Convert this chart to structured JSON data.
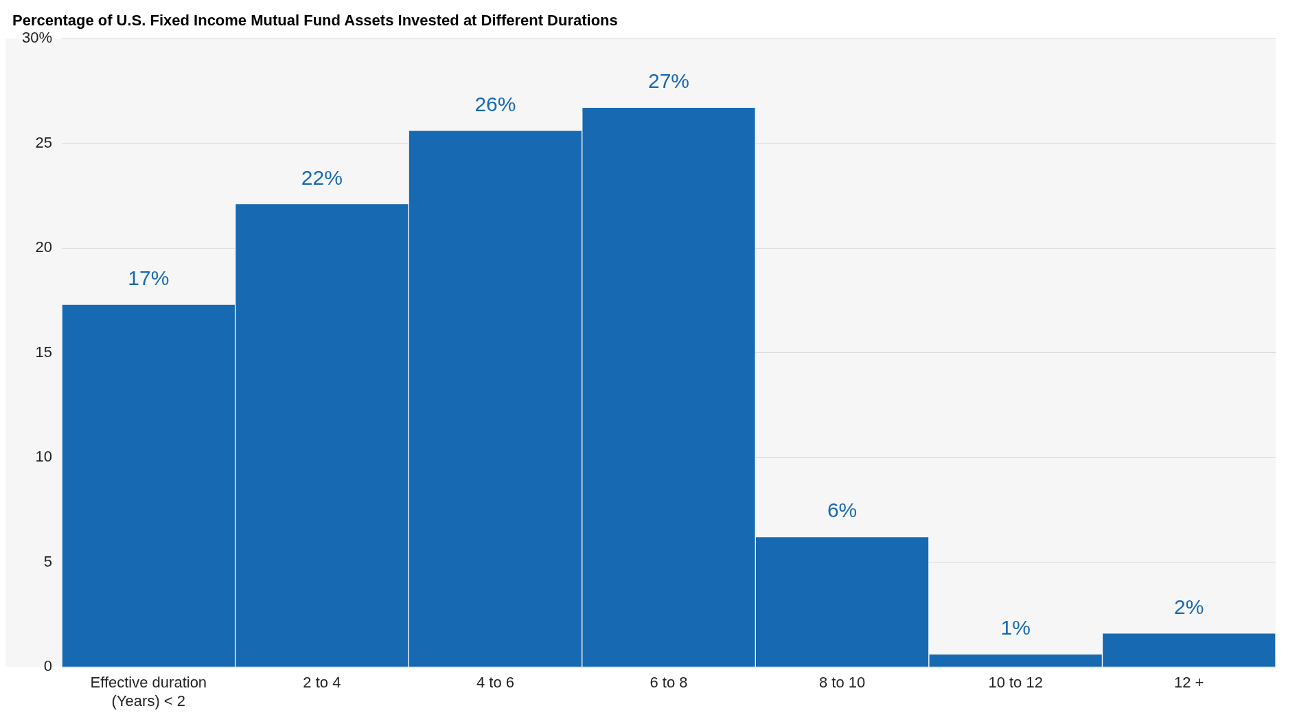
{
  "chart_data": {
    "type": "bar",
    "title": "Percentage of U.S. Fixed Income Mutual Fund Assets Invested at Different Durations",
    "categories": [
      "Effective duration (Years) < 2",
      "2 to 4",
      "4 to 6",
      "6 to 8",
      "8 to 10",
      "10 to 12",
      "12 +"
    ],
    "values": [
      17.3,
      22.1,
      25.6,
      26.7,
      6.2,
      0.6,
      1.6
    ],
    "value_labels": [
      "17%",
      "22%",
      "26%",
      "27%",
      "6%",
      "1%",
      "2%"
    ],
    "color": "#1769b1",
    "ylim": [
      0,
      30
    ],
    "yticks": [
      0,
      5,
      10,
      15,
      20,
      25,
      {
        "value": 30,
        "label": "30%"
      }
    ],
    "grid": "y",
    "legend": false
  }
}
